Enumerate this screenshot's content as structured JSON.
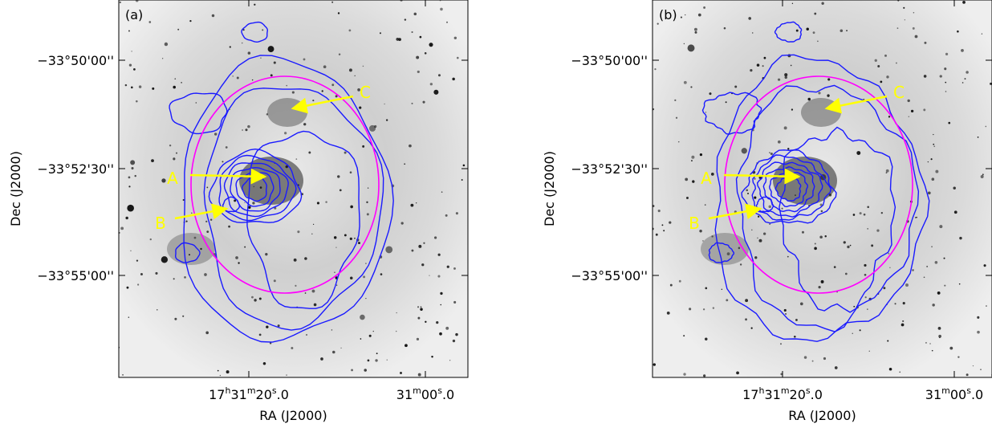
{
  "figure": {
    "y_axis_label": "Dec (J2000)",
    "x_axis_label": "RA (J2000)",
    "y_tick_labels": [
      "−33°50'00''",
      "−33°52'30''",
      "−33°55'00''"
    ],
    "x_tick_labels": [
      [
        {
          "text": "17"
        },
        {
          "text": "h",
          "sup": true
        },
        {
          "text": "31"
        },
        {
          "text": "m",
          "sup": true
        },
        {
          "text": "20"
        },
        {
          "text": "s",
          "sup": true
        },
        {
          "text": ".0"
        }
      ],
      [
        {
          "text": "31"
        },
        {
          "text": "m",
          "sup": true
        },
        {
          "text": "00"
        },
        {
          "text": "s",
          "sup": true
        },
        {
          "text": ".0"
        }
      ]
    ],
    "panels": [
      {
        "label": "(a)",
        "annotations": [
          "A",
          "B",
          "C"
        ]
      },
      {
        "label": "(b)",
        "annotations": [
          "A",
          "B",
          "C"
        ]
      }
    ]
  }
}
